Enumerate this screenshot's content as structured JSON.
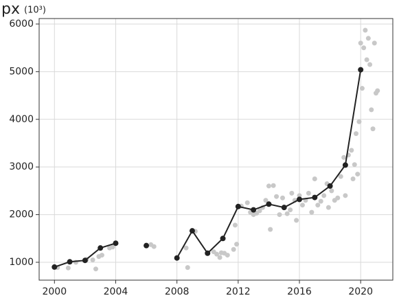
{
  "chart_data": {
    "type": "line",
    "title": "px",
    "unit": "(10³)",
    "xlim": [
      1999,
      2022.1
    ],
    "ylim": [
      625,
      6115
    ],
    "xticks": [
      2000,
      2004,
      2008,
      2012,
      2016,
      2020
    ],
    "yticks": [
      1000,
      2000,
      3000,
      4000,
      5000,
      6000
    ],
    "grid": true,
    "series": [
      {
        "type": "scatter",
        "color": "#c8c8c8",
        "x": [
          2000.2,
          2000.9,
          2001.4,
          2002.1,
          2002.5,
          2002.7,
          2002.9,
          2003.1,
          2003.6,
          2003.8,
          2006.3,
          2006.5,
          2008.6,
          2008.7,
          2009.2,
          2010.4,
          2010.6,
          2010.8,
          2010.9,
          2011.1,
          2011.3,
          2011.7,
          2011.8,
          2011.9,
          2012.2,
          2012.6,
          2012.8,
          2013.0,
          2013.2,
          2013.4,
          2013.6,
          2013.8,
          2014.0,
          2014.1,
          2014.3,
          2014.5,
          2014.7,
          2014.9,
          2015.2,
          2015.4,
          2015.5,
          2015.7,
          2015.8,
          2016.0,
          2016.2,
          2016.4,
          2016.6,
          2016.8,
          2017.0,
          2017.2,
          2017.4,
          2017.6,
          2017.8,
          2017.9,
          2018.1,
          2018.3,
          2018.5,
          2018.7,
          2018.9,
          2019.0,
          2019.2,
          2019.4,
          2019.5,
          2019.6,
          2019.7,
          2019.8,
          2019.9,
          2020.0,
          2020.1,
          2020.2,
          2020.3,
          2020.4,
          2020.5,
          2020.6,
          2020.7,
          2020.8,
          2020.9,
          2021.0,
          2021.1
        ],
        "values": [
          890,
          880,
          1000,
          1060,
          1050,
          860,
          1120,
          1150,
          1300,
          1320,
          1370,
          1330,
          1300,
          890,
          1650,
          1220,
          1170,
          1100,
          1200,
          1190,
          1150,
          1270,
          1780,
          1380,
          2180,
          2250,
          2050,
          2000,
          2030,
          2080,
          2150,
          2300,
          2600,
          1690,
          2610,
          2380,
          2000,
          2350,
          2020,
          2100,
          2450,
          2300,
          1880,
          2400,
          2200,
          2300,
          2450,
          2050,
          2750,
          2200,
          2280,
          2400,
          2650,
          2150,
          2500,
          2300,
          2350,
          2800,
          3200,
          2400,
          3250,
          3350,
          2750,
          3050,
          3700,
          2850,
          3950,
          5600,
          4650,
          5500,
          5870,
          5250,
          5700,
          5150,
          4200,
          3800,
          5600,
          4550,
          4600
        ]
      },
      {
        "type": "line",
        "color": "#222222",
        "x": [
          2000,
          2001,
          2002,
          2003,
          2004,
          2005,
          2006,
          2007,
          2008,
          2009,
          2010,
          2011,
          2012,
          2013,
          2014,
          2015,
          2016,
          2017,
          2018,
          2019,
          2020
        ],
        "values": [
          900,
          1010,
          1040,
          1300,
          1400,
          null,
          1350,
          null,
          1090,
          1660,
          1190,
          1500,
          2170,
          2100,
          2220,
          2150,
          2320,
          2360,
          2600,
          3040,
          5040
        ]
      }
    ]
  }
}
